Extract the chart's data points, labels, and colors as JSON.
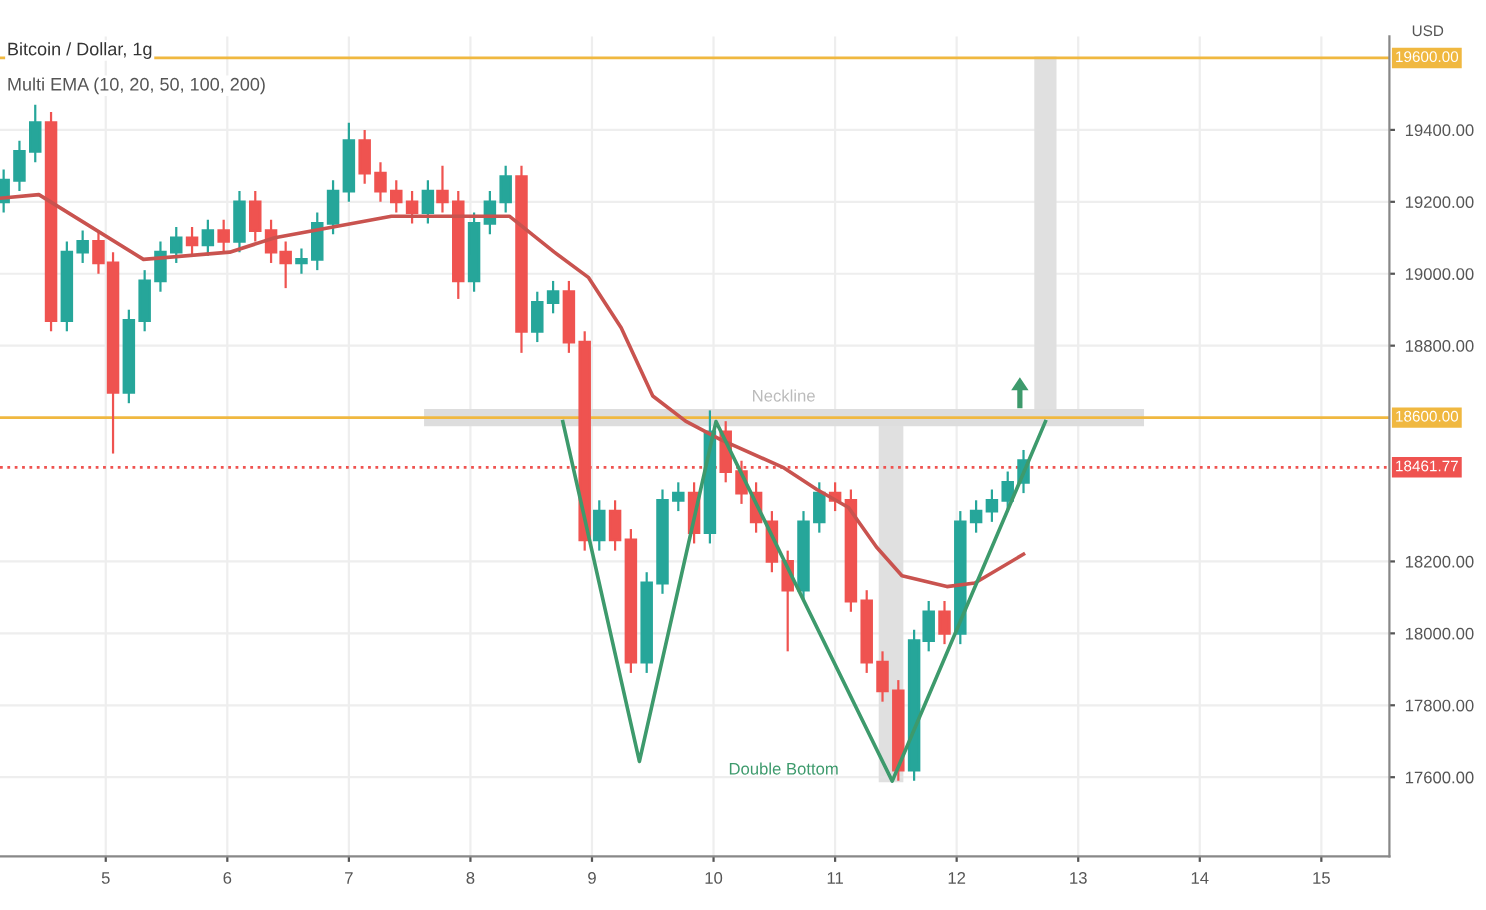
{
  "chart_data": {
    "type": "candlestick",
    "title": "Bitcoin / Dollar, 1g",
    "subtitle": "Multi EMA (10, 20, 50, 100, 200)",
    "ylabel": "USD",
    "x": [
      4.16,
      4.29,
      4.42,
      4.55,
      4.68,
      4.81,
      4.94,
      5.06,
      5.19,
      5.32,
      5.45,
      5.58,
      5.71,
      5.84,
      5.97,
      6.1,
      6.23,
      6.36,
      6.48,
      6.61,
      6.74,
      6.87,
      7.0,
      7.13,
      7.26,
      7.39,
      7.52,
      7.65,
      7.77,
      7.9,
      8.03,
      8.16,
      8.29,
      8.42,
      8.55,
      8.68,
      8.81,
      8.94,
      9.06,
      9.19,
      9.32,
      9.45,
      9.58,
      9.71,
      9.84,
      9.97,
      10.1,
      10.23,
      10.35,
      10.48,
      10.61,
      10.74,
      10.87,
      11.0,
      11.13,
      11.26,
      11.39,
      11.52,
      11.65,
      11.77,
      11.9,
      12.03,
      12.16,
      12.29,
      12.42,
      12.55
    ],
    "ohlc": [
      [
        19200,
        19290,
        19170,
        19260
      ],
      [
        19260,
        19370,
        19230,
        19340
      ],
      [
        19340,
        19470,
        19310,
        19420
      ],
      [
        19420,
        19450,
        18840,
        18870
      ],
      [
        18870,
        19090,
        18840,
        19060
      ],
      [
        19060,
        19120,
        19030,
        19090
      ],
      [
        19090,
        19120,
        19000,
        19030
      ],
      [
        19030,
        19060,
        18500,
        18670
      ],
      [
        18670,
        18900,
        18640,
        18870
      ],
      [
        18870,
        19010,
        18840,
        18980
      ],
      [
        18980,
        19090,
        18950,
        19060
      ],
      [
        19060,
        19130,
        19030,
        19100
      ],
      [
        19100,
        19130,
        19050,
        19080
      ],
      [
        19080,
        19150,
        19050,
        19120
      ],
      [
        19120,
        19150,
        19060,
        19090
      ],
      [
        19090,
        19230,
        19060,
        19200
      ],
      [
        19200,
        19230,
        19090,
        19120
      ],
      [
        19120,
        19150,
        19030,
        19060
      ],
      [
        19060,
        19090,
        18960,
        19030
      ],
      [
        19030,
        19070,
        19000,
        19040
      ],
      [
        19040,
        19170,
        19010,
        19140
      ],
      [
        19140,
        19260,
        19110,
        19230
      ],
      [
        19230,
        19420,
        19200,
        19370
      ],
      [
        19370,
        19400,
        19250,
        19280
      ],
      [
        19280,
        19310,
        19200,
        19230
      ],
      [
        19230,
        19260,
        19170,
        19200
      ],
      [
        19200,
        19230,
        19140,
        19170
      ],
      [
        19170,
        19260,
        19140,
        19230
      ],
      [
        19230,
        19300,
        19170,
        19200
      ],
      [
        19200,
        19230,
        18930,
        18980
      ],
      [
        18980,
        19170,
        18950,
        19140
      ],
      [
        19140,
        19230,
        19110,
        19200
      ],
      [
        19200,
        19300,
        19170,
        19270
      ],
      [
        19270,
        19300,
        18780,
        18840
      ],
      [
        18840,
        18950,
        18810,
        18920
      ],
      [
        18920,
        18980,
        18890,
        18950
      ],
      [
        18950,
        18980,
        18780,
        18810
      ],
      [
        18810,
        18840,
        18230,
        18260
      ],
      [
        18260,
        18370,
        18230,
        18340
      ],
      [
        18340,
        18370,
        18230,
        18260
      ],
      [
        18260,
        18290,
        17890,
        17920
      ],
      [
        17920,
        18170,
        17890,
        18140
      ],
      [
        18140,
        18400,
        18110,
        18370
      ],
      [
        18370,
        18420,
        18340,
        18390
      ],
      [
        18390,
        18420,
        18250,
        18280
      ],
      [
        18280,
        18620,
        18250,
        18560
      ],
      [
        18560,
        18590,
        18420,
        18450
      ],
      [
        18450,
        18480,
        18360,
        18390
      ],
      [
        18390,
        18420,
        18280,
        18310
      ],
      [
        18310,
        18340,
        18170,
        18200
      ],
      [
        18200,
        18230,
        17950,
        18120
      ],
      [
        18120,
        18340,
        18090,
        18310
      ],
      [
        18310,
        18420,
        18280,
        18390
      ],
      [
        18390,
        18420,
        18340,
        18370
      ],
      [
        18370,
        18400,
        18060,
        18090
      ],
      [
        18090,
        18120,
        17890,
        17920
      ],
      [
        17920,
        17950,
        17810,
        17840
      ],
      [
        17840,
        17870,
        17590,
        17620
      ],
      [
        17620,
        18010,
        17590,
        17980
      ],
      [
        17980,
        18090,
        17950,
        18060
      ],
      [
        18060,
        18090,
        17970,
        18000
      ],
      [
        18000,
        18340,
        17970,
        18310
      ],
      [
        18310,
        18370,
        18280,
        18340
      ],
      [
        18340,
        18400,
        18310,
        18370
      ],
      [
        18370,
        18450,
        18340,
        18420
      ],
      [
        18420,
        18510,
        18390,
        18480
      ]
    ],
    "series": [
      {
        "type": "line",
        "color": "#c9534f",
        "x": [
          4.13,
          4.45,
          5.31,
          6.02,
          6.39,
          7.35,
          8.32,
          8.69,
          8.97,
          9.24,
          9.5,
          9.77,
          10.05,
          10.58,
          10.85,
          11.11,
          11.34,
          11.55,
          11.92,
          12.15,
          12.55
        ],
        "values": [
          19210,
          19220,
          19040,
          19060,
          19100,
          19160,
          19160,
          19060,
          18990,
          18850,
          18660,
          18590,
          18540,
          18460,
          18400,
          18350,
          18240,
          18160,
          18130,
          18140,
          18220
        ]
      },
      {
        "type": "line",
        "color": "#3d9a6c",
        "x": [
          8.76,
          9.39,
          10.02,
          11.47,
          12.73
        ],
        "values": [
          18589,
          17644,
          18589,
          17589,
          18589
        ]
      }
    ],
    "xlim": [
      4.13,
      15.56
    ],
    "ylim": [
      17380,
      19660
    ],
    "xticks": [
      5,
      6,
      7,
      8,
      9,
      10,
      11,
      12,
      13,
      14,
      15
    ],
    "yticks": [
      {
        "value": 17600,
        "label": "17600.00"
      },
      {
        "value": 17800,
        "label": "17800.00"
      },
      {
        "value": 18000,
        "label": "18000.00"
      },
      {
        "value": 18200,
        "label": "18200.00"
      },
      {
        "value": 18800,
        "label": "18800.00"
      },
      {
        "value": 19000,
        "label": "19000.00"
      },
      {
        "value": 19200,
        "label": "19200.00"
      },
      {
        "value": 19400,
        "label": "19400.00"
      }
    ],
    "ref_lines": [
      {
        "axis": "y",
        "value": 19600,
        "label": "19600.00",
        "color": "#f0b840",
        "line_style": "solid"
      },
      {
        "axis": "y",
        "value": 18600,
        "label": "18600.00",
        "color": "#f0b840",
        "line_style": "solid"
      },
      {
        "axis": "y",
        "value": 18461.77,
        "label": "18461.77",
        "color": "#ef5350",
        "line_style": "dotted"
      }
    ],
    "annotations": [
      "Neckline",
      "Double Bottom"
    ],
    "grid": true,
    "legend": false
  }
}
